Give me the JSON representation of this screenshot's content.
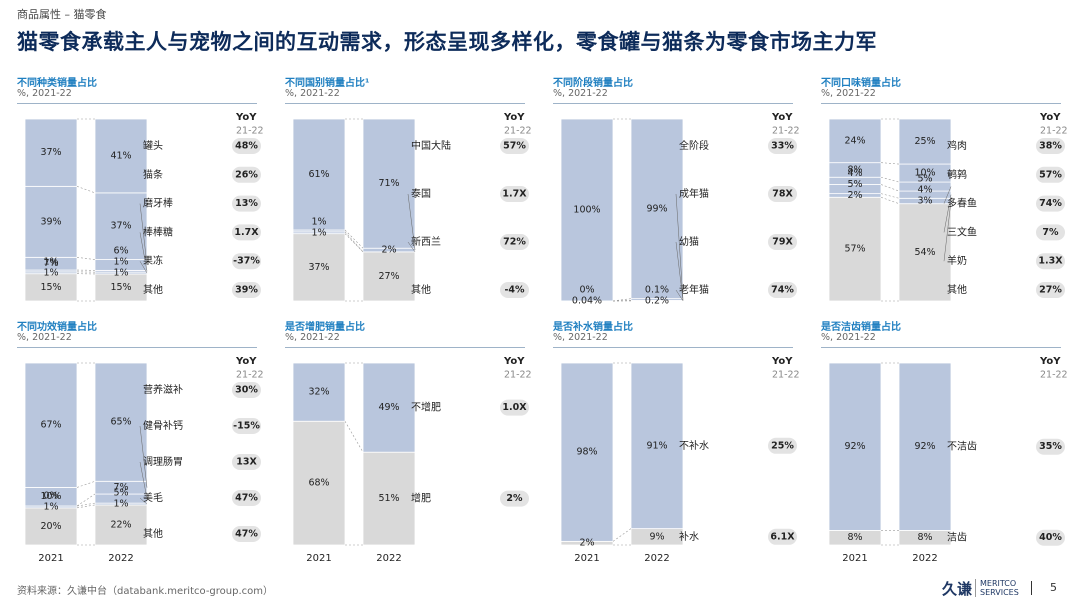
{
  "header": {
    "breadcrumb": "商品属性 – 猫零食",
    "title": "猫零食承载主人与宠物之间的互动需求，形态呈现多样化，零食罐与猫条为零食市场主力军"
  },
  "colors": {
    "blue": "#b9c6dd",
    "gray": "#d9d9d9",
    "pill": "#e3e3e3",
    "accent": "#1f7fc0"
  },
  "chart_data": [
    {
      "type": "stacked_bar",
      "title": "不同种类销量占比",
      "subtitle": "%, 2021-22",
      "categories": [
        "2021",
        "2022"
      ],
      "show_xlabels": false,
      "yoy_head": "YoY",
      "yoy_period": "21-22",
      "series": [
        {
          "name": "其他",
          "values": [
            15,
            15
          ],
          "labels": [
            "15%",
            "15%"
          ],
          "yoy": "39%"
        },
        {
          "name": "果冻",
          "values": [
            1,
            1
          ],
          "labels": [
            "1%",
            "1%"
          ],
          "yoy": "-37%"
        },
        {
          "name": "棒棒糖",
          "values": [
            1,
            1
          ],
          "labels": [
            "1%",
            "1%"
          ],
          "yoy": "1.7X"
        },
        {
          "name": "磨牙棒",
          "values": [
            7,
            6
          ],
          "labels": [
            "7%",
            "6%"
          ],
          "yoy": "13%"
        },
        {
          "name": "猫条",
          "values": [
            39,
            37
          ],
          "labels": [
            "39%",
            "37%"
          ],
          "yoy": "26%"
        },
        {
          "name": "罐头",
          "values": [
            37,
            41
          ],
          "labels": [
            "37%",
            "41%"
          ],
          "yoy": "48%"
        }
      ]
    },
    {
      "type": "stacked_bar",
      "title": "不同国别销量占比¹",
      "subtitle": "%, 2021-22",
      "categories": [
        "2021",
        "2022"
      ],
      "show_xlabels": false,
      "yoy_head": "YoY",
      "yoy_period": "21-22",
      "series": [
        {
          "name": "其他",
          "values": [
            37,
            27
          ],
          "labels": [
            "37%",
            "27%"
          ],
          "yoy": "-4%"
        },
        {
          "name": "新西兰",
          "values": [
            1,
            0
          ],
          "labels": [
            "1%",
            ""
          ],
          "yoy": "72%"
        },
        {
          "name": "泰国",
          "values": [
            1,
            2
          ],
          "labels": [
            "1%",
            "2%"
          ],
          "yoy": "1.7X"
        },
        {
          "name": "中国大陆",
          "values": [
            61,
            71
          ],
          "labels": [
            "61%",
            "71%"
          ],
          "yoy": "57%"
        }
      ]
    },
    {
      "type": "stacked_bar",
      "title": "不同阶段销量占比",
      "subtitle": "%, 2021-22",
      "categories": [
        "2021",
        "2022"
      ],
      "show_xlabels": false,
      "yoy_head": "YoY",
      "yoy_period": "21-22",
      "series": [
        {
          "name": "老年猫",
          "values": [
            0.04,
            0.2
          ],
          "labels": [
            "0.04%",
            "0.2%"
          ],
          "yoy": "74%"
        },
        {
          "name": "幼猫",
          "values": [
            0,
            0.1
          ],
          "labels": [
            "0%",
            "0.1%"
          ],
          "yoy": "79X"
        },
        {
          "name": "成年猫",
          "values": [
            0,
            1
          ],
          "labels": [
            "",
            ""
          ],
          "yoy": "78X"
        },
        {
          "name": "全阶段",
          "values": [
            100,
            99
          ],
          "labels": [
            "100%",
            "99%"
          ],
          "yoy": "33%"
        }
      ]
    },
    {
      "type": "stacked_bar",
      "title": "不同口味销量占比",
      "subtitle": "%, 2021-22",
      "categories": [
        "2021",
        "2022"
      ],
      "show_xlabels": false,
      "yoy_head": "YoY",
      "yoy_period": "21-22",
      "series": [
        {
          "name": "其他",
          "values": [
            57,
            54
          ],
          "labels": [
            "57%",
            "54%"
          ],
          "yoy": "27%"
        },
        {
          "name": "羊奶",
          "values": [
            2,
            3
          ],
          "labels": [
            "2%",
            "3%"
          ],
          "yoy": "1.3X"
        },
        {
          "name": "三文鱼",
          "values": [
            5,
            4
          ],
          "labels": [
            "5%",
            "4%"
          ],
          "yoy": "7%"
        },
        {
          "name": "多春鱼",
          "values": [
            4,
            5
          ],
          "labels": [
            "4%",
            "5%"
          ],
          "yoy": "74%"
        },
        {
          "name": "鹌鹑",
          "values": [
            8,
            10
          ],
          "labels": [
            "8%",
            "10%"
          ],
          "yoy": "57%"
        },
        {
          "name": "鸡肉",
          "values": [
            24,
            25
          ],
          "labels": [
            "24%",
            "25%"
          ],
          "yoy": "38%"
        }
      ]
    },
    {
      "type": "stacked_bar",
      "title": "不同功效销量占比",
      "subtitle": "%, 2021-22",
      "categories": [
        "2021",
        "2022"
      ],
      "show_xlabels": true,
      "yoy_head": "YoY",
      "yoy_period": "21-22",
      "series": [
        {
          "name": "其他",
          "values": [
            20,
            22
          ],
          "labels": [
            "20%",
            "22%"
          ],
          "yoy": "47%"
        },
        {
          "name": "美毛",
          "values": [
            1,
            1
          ],
          "labels": [
            "1%",
            "1%"
          ],
          "yoy": "47%"
        },
        {
          "name": "调理肠胃",
          "values": [
            0,
            5
          ],
          "labels": [
            "0%",
            "5%"
          ],
          "yoy": "13X"
        },
        {
          "name": "健骨补钙",
          "values": [
            10,
            7
          ],
          "labels": [
            "10%",
            "7%"
          ],
          "yoy": "-15%"
        },
        {
          "name": "营养滋补",
          "values": [
            67,
            65
          ],
          "labels": [
            "67%",
            "65%"
          ],
          "yoy": "30%"
        }
      ]
    },
    {
      "type": "stacked_bar",
      "title": "是否增肥销量占比",
      "subtitle": "%, 2021-22",
      "categories": [
        "2021",
        "2022"
      ],
      "show_xlabels": true,
      "yoy_head": "YoY",
      "yoy_period": "21-22",
      "series": [
        {
          "name": "增肥",
          "values": [
            68,
            51
          ],
          "labels": [
            "68%",
            "51%"
          ],
          "yoy": "2%"
        },
        {
          "name": "不增肥",
          "values": [
            32,
            49
          ],
          "labels": [
            "32%",
            "49%"
          ],
          "yoy": "1.0X"
        }
      ]
    },
    {
      "type": "stacked_bar",
      "title": "是否补水销量占比",
      "subtitle": "%, 2021-22",
      "categories": [
        "2021",
        "2022"
      ],
      "show_xlabels": true,
      "yoy_head": "YoY",
      "yoy_period": "21-22",
      "series": [
        {
          "name": "补水",
          "values": [
            2,
            9
          ],
          "labels": [
            "2%",
            "9%"
          ],
          "yoy": "6.1X"
        },
        {
          "name": "不补水",
          "values": [
            98,
            91
          ],
          "labels": [
            "98%",
            "91%"
          ],
          "yoy": "25%"
        }
      ]
    },
    {
      "type": "stacked_bar",
      "title": "是否洁齿销量占比",
      "subtitle": "%, 2021-22",
      "categories": [
        "2021",
        "2022"
      ],
      "show_xlabels": true,
      "yoy_head": "YoY",
      "yoy_period": "21-22",
      "series": [
        {
          "name": "洁齿",
          "values": [
            8,
            8
          ],
          "labels": [
            "8%",
            "8%"
          ],
          "yoy": "40%"
        },
        {
          "name": "不洁齿",
          "values": [
            92,
            92
          ],
          "labels": [
            "92%",
            "92%"
          ],
          "yoy": "35%"
        }
      ]
    }
  ],
  "footer": {
    "source": "资料来源：久谦中台（databank.meritco-group.com）",
    "logo_cn": "久谦",
    "logo_en_1": "MERITCO",
    "logo_en_2": "SERVICES",
    "page": "5"
  }
}
